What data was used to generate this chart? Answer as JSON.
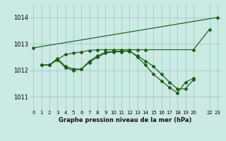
{
  "background_color": "#cceae4",
  "grid_color": "#99cccc",
  "line_color": "#1a5c1a",
  "title": "Graphe pression niveau de la mer (hPa)",
  "xlim": [
    -0.5,
    23.5
  ],
  "ylim": [
    1010.5,
    1014.5
  ],
  "yticks": [
    1011,
    1012,
    1013,
    1014
  ],
  "xtick_labels": [
    "0",
    "1",
    "2",
    "3",
    "4",
    "5",
    "6",
    "7",
    "8",
    "9",
    "10",
    "11",
    "12",
    "13",
    "14",
    "15",
    "16",
    "17",
    "18",
    "19",
    "20",
    "22",
    "23"
  ],
  "xtick_pos": [
    0,
    1,
    2,
    3,
    4,
    5,
    6,
    7,
    8,
    9,
    10,
    11,
    12,
    13,
    14,
    15,
    16,
    17,
    18,
    19,
    20,
    22,
    23
  ],
  "series": [
    {
      "x": [
        0,
        23
      ],
      "y": [
        1012.85,
        1014.0
      ]
    },
    {
      "x": [
        1,
        2,
        3,
        4,
        5,
        6,
        7,
        8,
        9,
        10,
        11,
        12,
        13,
        14,
        20,
        22
      ],
      "y": [
        1012.2,
        1012.2,
        1012.4,
        1012.6,
        1012.65,
        1012.7,
        1012.75,
        1012.78,
        1012.78,
        1012.78,
        1012.78,
        1012.78,
        1012.78,
        1012.78,
        1012.78,
        1013.55
      ]
    },
    {
      "x": [
        1,
        2,
        3,
        4,
        5,
        6,
        7,
        8,
        9,
        10,
        11,
        12,
        13,
        14,
        15,
        16,
        17,
        18,
        19,
        20
      ],
      "y": [
        1012.2,
        1012.2,
        1012.4,
        1012.1,
        1012.0,
        1012.05,
        1012.3,
        1012.5,
        1012.65,
        1012.7,
        1012.7,
        1012.75,
        1012.5,
        1012.2,
        1011.85,
        1011.6,
        1011.35,
        1011.15,
        1011.55,
        1011.7
      ]
    },
    {
      "x": [
        1,
        2,
        3,
        4,
        5,
        6,
        7,
        8,
        9,
        10,
        11,
        12,
        13,
        14,
        15,
        16,
        17,
        18,
        19,
        20
      ],
      "y": [
        1012.2,
        1012.2,
        1012.45,
        1012.15,
        1012.05,
        1012.05,
        1012.35,
        1012.55,
        1012.68,
        1012.72,
        1012.72,
        1012.72,
        1012.55,
        1012.35,
        1012.15,
        1011.85,
        1011.55,
        1011.3,
        1011.3,
        1011.65
      ]
    }
  ]
}
